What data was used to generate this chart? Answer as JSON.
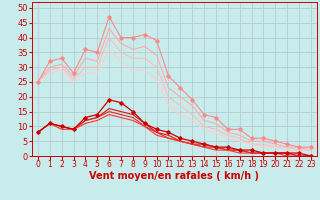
{
  "background_color": "#c8ecec",
  "grid_color": "#b0c8c8",
  "xlabel": "Vent moyen/en rafales ( km/h )",
  "xlabel_color": "#cc0000",
  "xlabel_fontsize": 7,
  "xtick_fontsize": 5.5,
  "ytick_fontsize": 6,
  "xlim": [
    -0.5,
    23.5
  ],
  "ylim": [
    0,
    52
  ],
  "yticks": [
    0,
    5,
    10,
    15,
    20,
    25,
    30,
    35,
    40,
    45,
    50
  ],
  "xticks": [
    0,
    1,
    2,
    3,
    4,
    5,
    6,
    7,
    8,
    9,
    10,
    11,
    12,
    13,
    14,
    15,
    16,
    17,
    18,
    19,
    20,
    21,
    22,
    23
  ],
  "series": [
    {
      "x": [
        0,
        1,
        2,
        3,
        4,
        5,
        6,
        7,
        8,
        9,
        10,
        11,
        12,
        13,
        14,
        15,
        16,
        17,
        18,
        19,
        20,
        21,
        22,
        23
      ],
      "y": [
        25,
        32,
        33,
        28,
        36,
        35,
        47,
        40,
        40,
        41,
        39,
        27,
        23,
        19,
        14,
        13,
        9,
        9,
        6,
        6,
        5,
        4,
        3,
        3
      ],
      "color": "#ff8888",
      "linewidth": 0.8,
      "marker": "D",
      "markersize": 1.8,
      "zorder": 3
    },
    {
      "x": [
        0,
        1,
        2,
        3,
        4,
        5,
        6,
        7,
        8,
        9,
        10,
        11,
        12,
        13,
        14,
        15,
        16,
        17,
        18,
        19,
        20,
        21,
        22,
        23
      ],
      "y": [
        25,
        30,
        31,
        27,
        33,
        32,
        43,
        38,
        36,
        37,
        34,
        23,
        20,
        17,
        12,
        11,
        8,
        7,
        5,
        5,
        4,
        3,
        3,
        2
      ],
      "color": "#ffaaaa",
      "linewidth": 0.8,
      "marker": null,
      "markersize": 0,
      "zorder": 2
    },
    {
      "x": [
        0,
        1,
        2,
        3,
        4,
        5,
        6,
        7,
        8,
        9,
        10,
        11,
        12,
        13,
        14,
        15,
        16,
        17,
        18,
        19,
        20,
        21,
        22,
        23
      ],
      "y": [
        25,
        29,
        30,
        26,
        30,
        30,
        40,
        35,
        33,
        33,
        30,
        20,
        17,
        14,
        10,
        9,
        7,
        6,
        4,
        4,
        3,
        3,
        2,
        2
      ],
      "color": "#ffbbbb",
      "linewidth": 0.8,
      "marker": null,
      "markersize": 0,
      "zorder": 2
    },
    {
      "x": [
        0,
        1,
        2,
        3,
        4,
        5,
        6,
        7,
        8,
        9,
        10,
        11,
        12,
        13,
        14,
        15,
        16,
        17,
        18,
        19,
        20,
        21,
        22,
        23
      ],
      "y": [
        25,
        28,
        29,
        25,
        28,
        28,
        36,
        32,
        29,
        29,
        26,
        17,
        14,
        12,
        9,
        8,
        6,
        5,
        4,
        3,
        3,
        2,
        2,
        2
      ],
      "color": "#ffcccc",
      "linewidth": 0.8,
      "marker": null,
      "markersize": 0,
      "zorder": 2
    },
    {
      "x": [
        0,
        1,
        2,
        3,
        4,
        5,
        6,
        7,
        8,
        9,
        10,
        11,
        12,
        13,
        14,
        15,
        16,
        17,
        18,
        19,
        20,
        21,
        22,
        23
      ],
      "y": [
        8,
        11,
        10,
        9,
        13,
        14,
        19,
        18,
        15,
        11,
        9,
        8,
        6,
        5,
        4,
        3,
        3,
        2,
        2,
        1,
        1,
        1,
        1,
        0
      ],
      "color": "#cc0000",
      "linewidth": 0.9,
      "marker": "D",
      "markersize": 1.8,
      "zorder": 5
    },
    {
      "x": [
        0,
        1,
        2,
        3,
        4,
        5,
        6,
        7,
        8,
        9,
        10,
        11,
        12,
        13,
        14,
        15,
        16,
        17,
        18,
        19,
        20,
        21,
        22,
        23
      ],
      "y": [
        8,
        11,
        10,
        9,
        12,
        13,
        16,
        15,
        14,
        11,
        8,
        7,
        5,
        4,
        4,
        3,
        2,
        2,
        1,
        1,
        1,
        1,
        0,
        0
      ],
      "color": "#dd1111",
      "linewidth": 0.8,
      "marker": null,
      "markersize": 0,
      "zorder": 4
    },
    {
      "x": [
        0,
        1,
        2,
        3,
        4,
        5,
        6,
        7,
        8,
        9,
        10,
        11,
        12,
        13,
        14,
        15,
        16,
        17,
        18,
        19,
        20,
        21,
        22,
        23
      ],
      "y": [
        8,
        11,
        10,
        9,
        12,
        13,
        15,
        14,
        13,
        10,
        8,
        6,
        5,
        4,
        3,
        3,
        2,
        2,
        1,
        1,
        1,
        1,
        0,
        0
      ],
      "color": "#ee2222",
      "linewidth": 0.8,
      "marker": null,
      "markersize": 0,
      "zorder": 4
    },
    {
      "x": [
        0,
        1,
        2,
        3,
        4,
        5,
        6,
        7,
        8,
        9,
        10,
        11,
        12,
        13,
        14,
        15,
        16,
        17,
        18,
        19,
        20,
        21,
        22,
        23
      ],
      "y": [
        8,
        11,
        9,
        9,
        11,
        12,
        14,
        13,
        12,
        10,
        7,
        6,
        5,
        4,
        3,
        2,
        2,
        1,
        1,
        1,
        1,
        0,
        0,
        0
      ],
      "color": "#ff3333",
      "linewidth": 0.8,
      "marker": null,
      "markersize": 0,
      "zorder": 4
    }
  ]
}
